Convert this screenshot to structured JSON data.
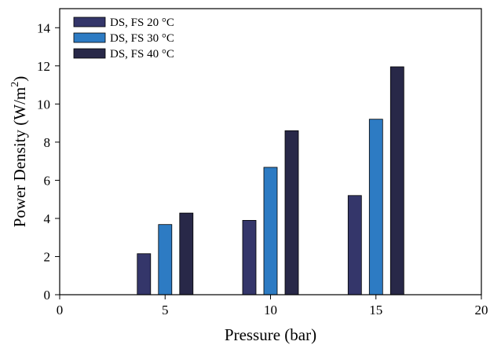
{
  "chart_data": {
    "type": "bar",
    "x_categories": [
      5,
      10,
      15
    ],
    "series": [
      {
        "name": "DS, FS 20 °C",
        "color": "#34366a",
        "values": [
          2.15,
          3.9,
          5.2
        ]
      },
      {
        "name": "DS, FS 30 °C",
        "color": "#2d7bc3",
        "values": [
          3.68,
          6.68,
          9.2
        ]
      },
      {
        "name": "DS, FS 40 °C",
        "color": "#282848",
        "values": [
          4.28,
          8.6,
          11.95
        ]
      }
    ],
    "xlabel": "Pressure (bar)",
    "ylabel": "Power Density (W/m",
    "ylabel_superscript": "2",
    "ylabel_suffix": ")",
    "xlim": [
      0,
      20
    ],
    "ylim": [
      0,
      15
    ],
    "xticks": [
      0,
      5,
      10,
      15,
      20
    ],
    "yticks": [
      0,
      2,
      4,
      6,
      8,
      10,
      12,
      14
    ],
    "legend_position": "top-left",
    "grid": false
  }
}
